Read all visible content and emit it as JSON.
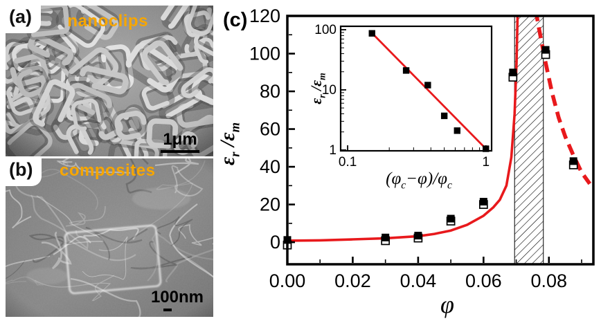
{
  "figure": {
    "panel_a": {
      "label": "(a)",
      "annotation": "nanoclips",
      "scalebar": "1μm"
    },
    "panel_b": {
      "label": "(b)",
      "annotation": "composites",
      "scalebar": "100nm"
    },
    "panel_c": {
      "label": "(c)"
    }
  },
  "colors": {
    "accent_red": "#E8191C",
    "annotation_orange": "#F7A600",
    "axis_black": "#000000"
  },
  "chart_data": [
    {
      "type": "scatter",
      "role": "main",
      "xlabel": "φ",
      "ylabel": "ε_r /ε_m",
      "xlim": [
        0,
        0.0936
      ],
      "ylim": [
        -11.7,
        120
      ],
      "grid": false,
      "xticks": {
        "major": [
          0,
          0.02,
          0.04,
          0.06,
          0.08
        ],
        "labels": [
          "0.00",
          "0.02",
          "0.04",
          "0.06",
          "0.08"
        ],
        "minor": [
          0.01,
          0.03,
          0.05,
          0.07,
          0.09
        ]
      },
      "yticks": {
        "major": [
          0,
          20,
          40,
          60,
          80,
          100,
          120
        ],
        "labels": [
          "0",
          "20",
          "40",
          "60",
          "80",
          "100",
          "120"
        ],
        "minor": [
          10,
          30,
          50,
          70,
          90,
          110
        ]
      },
      "hatch_band": {
        "x0": 0.0695,
        "x1": 0.0783
      },
      "series": [
        {
          "name": "experimental-filled-squares",
          "marker": "filled-square",
          "points": [
            [
              0,
              1.2
            ],
            [
              0.03,
              2.5
            ],
            [
              0.04,
              3.5
            ],
            [
              0.05,
              12.5
            ],
            [
              0.06,
              21.5
            ],
            [
              0.069,
              90
            ],
            [
              0.079,
              102
            ],
            [
              0.0875,
              43
            ]
          ]
        },
        {
          "name": "experimental-open-squares",
          "marker": "open-square",
          "points": [
            [
              0,
              -1.5
            ],
            [
              0.03,
              0.8
            ],
            [
              0.04,
              2.2
            ],
            [
              0.05,
              11.2
            ],
            [
              0.06,
              20
            ],
            [
              0.069,
              87.5
            ],
            [
              0.079,
              99.5
            ],
            [
              0.0875,
              41
            ]
          ]
        },
        {
          "name": "percolation-fit-solid",
          "type": "line",
          "style": "solid",
          "points": [
            [
              0,
              0.8
            ],
            [
              0.01,
              1.0
            ],
            [
              0.02,
              1.5
            ],
            [
              0.03,
              2.1
            ],
            [
              0.04,
              3.2
            ],
            [
              0.045,
              4.4
            ],
            [
              0.05,
              6.2
            ],
            [
              0.055,
              9.2
            ],
            [
              0.06,
              14
            ],
            [
              0.063,
              18.5
            ],
            [
              0.065,
              22.5
            ],
            [
              0.067,
              30
            ],
            [
              0.0685,
              45
            ],
            [
              0.0695,
              68
            ],
            [
              0.0701,
              95
            ],
            [
              0.0706,
              135
            ]
          ]
        },
        {
          "name": "fit-above-threshold-dashed",
          "type": "line",
          "style": "dashed",
          "points": [
            [
              0.075,
              132
            ],
            [
              0.077,
              113
            ],
            [
              0.079,
              95
            ],
            [
              0.081,
              79
            ],
            [
              0.083,
              66
            ],
            [
              0.085,
              56
            ],
            [
              0.0875,
              46
            ],
            [
              0.09,
              37
            ],
            [
              0.0925,
              31
            ]
          ]
        }
      ]
    },
    {
      "type": "scatter",
      "role": "inset",
      "xscale": "log",
      "yscale": "log",
      "xlabel": "(φ_c−φ)/φ_c",
      "ylabel": "ε_r /ε_m",
      "xlim": [
        0.089,
        1.1
      ],
      "ylim": [
        0.97,
        114
      ],
      "xticks": {
        "major": [
          0.1,
          1
        ],
        "labels": [
          "0.1",
          "1"
        ],
        "minor": [
          0.2,
          0.3,
          0.4,
          0.5,
          0.6,
          0.7,
          0.8,
          0.9
        ]
      },
      "yticks": {
        "major": [
          1,
          10,
          100
        ],
        "labels": [
          "1",
          "10",
          "100"
        ],
        "minor": [
          2,
          3,
          4,
          5,
          6,
          7,
          8,
          9,
          20,
          30,
          40,
          50,
          60,
          70,
          80,
          90
        ]
      },
      "points": [
        [
          0.15,
          87
        ],
        [
          0.265,
          21
        ],
        [
          0.38,
          12
        ],
        [
          0.5,
          3.7
        ],
        [
          0.62,
          2.1
        ],
        [
          1.0,
          1.05
        ]
      ],
      "fit_line": {
        "x0": 0.145,
        "y0": 95,
        "x1": 1.03,
        "y1": 0.98
      }
    }
  ]
}
